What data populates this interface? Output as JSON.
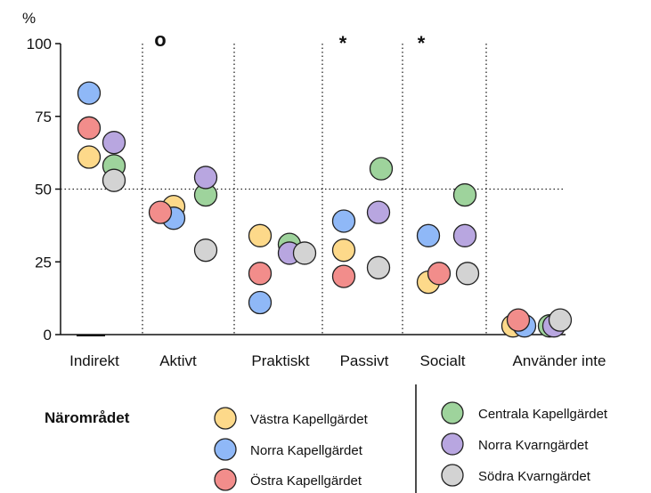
{
  "chart_data": {
    "type": "scatter",
    "title": "",
    "ylabel": "%",
    "ylim": [
      0,
      100
    ],
    "yticks": [
      0,
      25,
      50,
      75,
      100
    ],
    "reference_line": 50,
    "grid": "dotted vertical separators between categories",
    "categories": [
      "Indirekt",
      "Aktivt",
      "Praktiskt",
      "Passivt",
      "Socialt",
      "Använder inte"
    ],
    "annotations": [
      {
        "category": "Aktivt",
        "text": "o"
      },
      {
        "category": "Passivt",
        "text": "*"
      },
      {
        "category": "Socialt",
        "text": "*"
      }
    ],
    "legend_title": "Närområdet",
    "legend_position": "bottom",
    "series": [
      {
        "name": "Västra Kapellgärdet",
        "color": "#fdd98a",
        "values": [
          61,
          44,
          34,
          29,
          18,
          3
        ]
      },
      {
        "name": "Norra Kapellgärdet",
        "color": "#8fb8f7",
        "values": [
          83,
          40,
          11,
          39,
          34,
          3
        ]
      },
      {
        "name": "Östra Kapellgärdet",
        "color": "#f28d8b",
        "values": [
          71,
          42,
          21,
          20,
          21,
          5
        ]
      },
      {
        "name": "Centrala Kapellgärdet",
        "color": "#9ed39c",
        "values": [
          58,
          48,
          31,
          57,
          48,
          3
        ]
      },
      {
        "name": "Norra Kvarngärdet",
        "color": "#b8a6e0",
        "values": [
          66,
          54,
          28,
          42,
          34,
          3
        ]
      },
      {
        "name": "Södra Kvarngärdet",
        "color": "#d3d3d3",
        "values": [
          53,
          29,
          28,
          23,
          21,
          5
        ]
      }
    ]
  }
}
